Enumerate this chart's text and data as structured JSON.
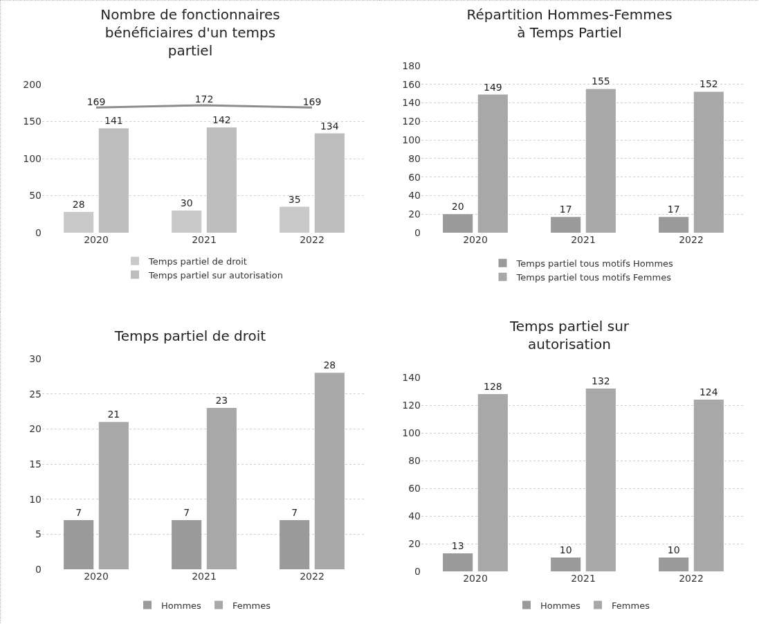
{
  "chart_data": [
    {
      "type": "bar",
      "title": "Nombre de fonctionnaires bénéficiaires d'un temps partiel",
      "categories": [
        "2020",
        "2021",
        "2022"
      ],
      "series": [
        {
          "name": "Temps partiel de droit",
          "color": "#c9c9c9",
          "values": [
            28,
            30,
            35
          ]
        },
        {
          "name": "Temps partiel sur autorisation",
          "color": "#bdbdbd",
          "values": [
            141,
            142,
            134
          ]
        },
        {
          "type": "line",
          "color": "#8c8c8c",
          "values": [
            169,
            172,
            169
          ]
        }
      ],
      "ylim": [
        0,
        200
      ],
      "yticks": [
        0,
        50,
        100,
        150,
        200
      ],
      "grid": "y",
      "legend": "bottom",
      "data_labels": true,
      "marker": "none"
    },
    {
      "type": "bar",
      "title": "Répartition Hommes-Femmes à Temps Partiel",
      "categories": [
        "2020",
        "2021",
        "2022"
      ],
      "series": [
        {
          "name": "Temps partiel tous motifs Hommes",
          "color": "#9a9a9a",
          "values": [
            20,
            17,
            17
          ]
        },
        {
          "name": "Temps partiel tous motifs Femmes",
          "color": "#a8a8a8",
          "values": [
            149,
            155,
            152
          ]
        }
      ],
      "ylim": [
        0,
        180
      ],
      "yticks": [
        0,
        20,
        40,
        60,
        80,
        100,
        120,
        140,
        160,
        180
      ],
      "grid": "y",
      "legend": "bottom",
      "data_labels": true
    },
    {
      "type": "bar",
      "title": "Temps partiel de droit",
      "categories": [
        "2020",
        "2021",
        "2022"
      ],
      "series": [
        {
          "name": "Hommes",
          "color": "#9a9a9a",
          "values": [
            7,
            7,
            7
          ]
        },
        {
          "name": "Femmes",
          "color": "#a8a8a8",
          "values": [
            21,
            23,
            28
          ]
        }
      ],
      "ylim": [
        0,
        30
      ],
      "yticks": [
        0,
        5,
        10,
        15,
        20,
        25,
        30
      ],
      "grid": "y",
      "legend": "bottom",
      "data_labels": true
    },
    {
      "type": "bar",
      "title": "Temps partiel sur autorisation",
      "categories": [
        "2020",
        "2021",
        "2022"
      ],
      "series": [
        {
          "name": "Hommes",
          "color": "#9a9a9a",
          "values": [
            13,
            10,
            10
          ]
        },
        {
          "name": "Femmes",
          "color": "#a8a8a8",
          "values": [
            128,
            132,
            124
          ]
        }
      ],
      "ylim": [
        0,
        140
      ],
      "yticks": [
        0,
        20,
        40,
        60,
        80,
        100,
        120,
        140
      ],
      "grid": "y",
      "legend": "bottom",
      "data_labels": true
    }
  ]
}
